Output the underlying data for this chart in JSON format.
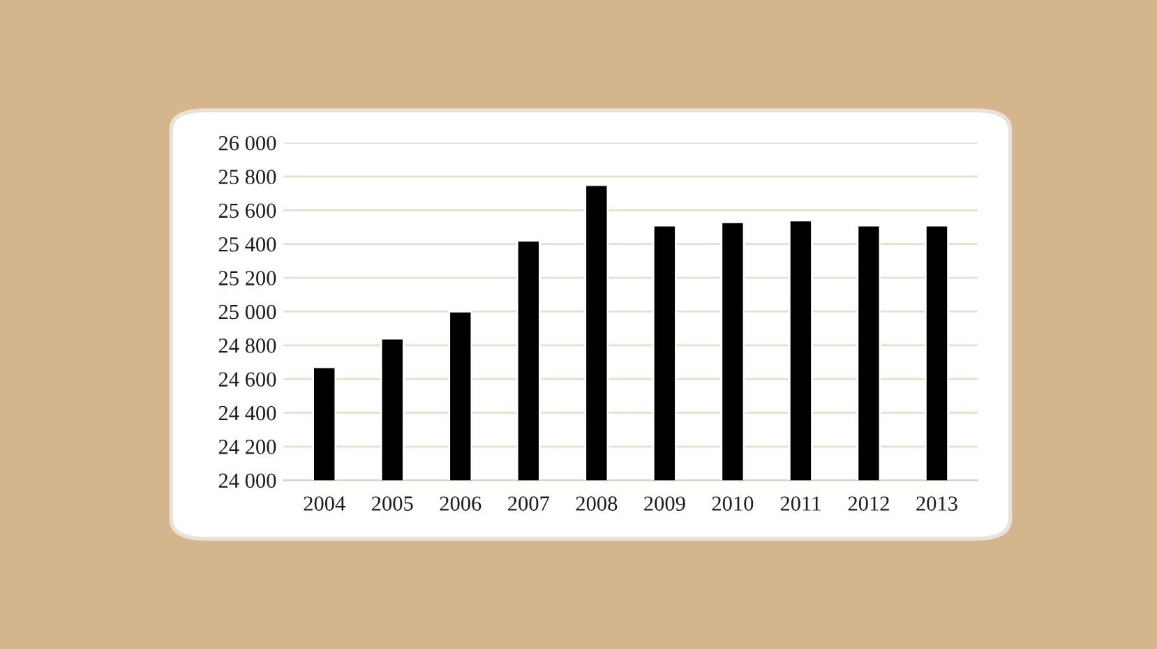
{
  "chart_data": {
    "type": "bar",
    "categories": [
      "2004",
      "2005",
      "2006",
      "2007",
      "2008",
      "2009",
      "2010",
      "2011",
      "2012",
      "2013"
    ],
    "values": [
      24670,
      24840,
      25000,
      25420,
      25750,
      25510,
      25530,
      25540,
      25510,
      25510
    ],
    "color": "#000000",
    "ylim": [
      24000,
      26000
    ],
    "yticks": [
      {
        "value": 24000,
        "label": "24 000"
      },
      {
        "value": 24200,
        "label": "24 200"
      },
      {
        "value": 24400,
        "label": "24 400"
      },
      {
        "value": 24600,
        "label": "24 600"
      },
      {
        "value": 24800,
        "label": "24 800"
      },
      {
        "value": 25000,
        "label": "25 000"
      },
      {
        "value": 25200,
        "label": "25 200"
      },
      {
        "value": 25400,
        "label": "25 400"
      },
      {
        "value": 25600,
        "label": "25 600"
      },
      {
        "value": 25800,
        "label": "25 800"
      },
      {
        "value": 26000,
        "label": "26 000"
      }
    ],
    "grid": "y",
    "legend": false
  }
}
